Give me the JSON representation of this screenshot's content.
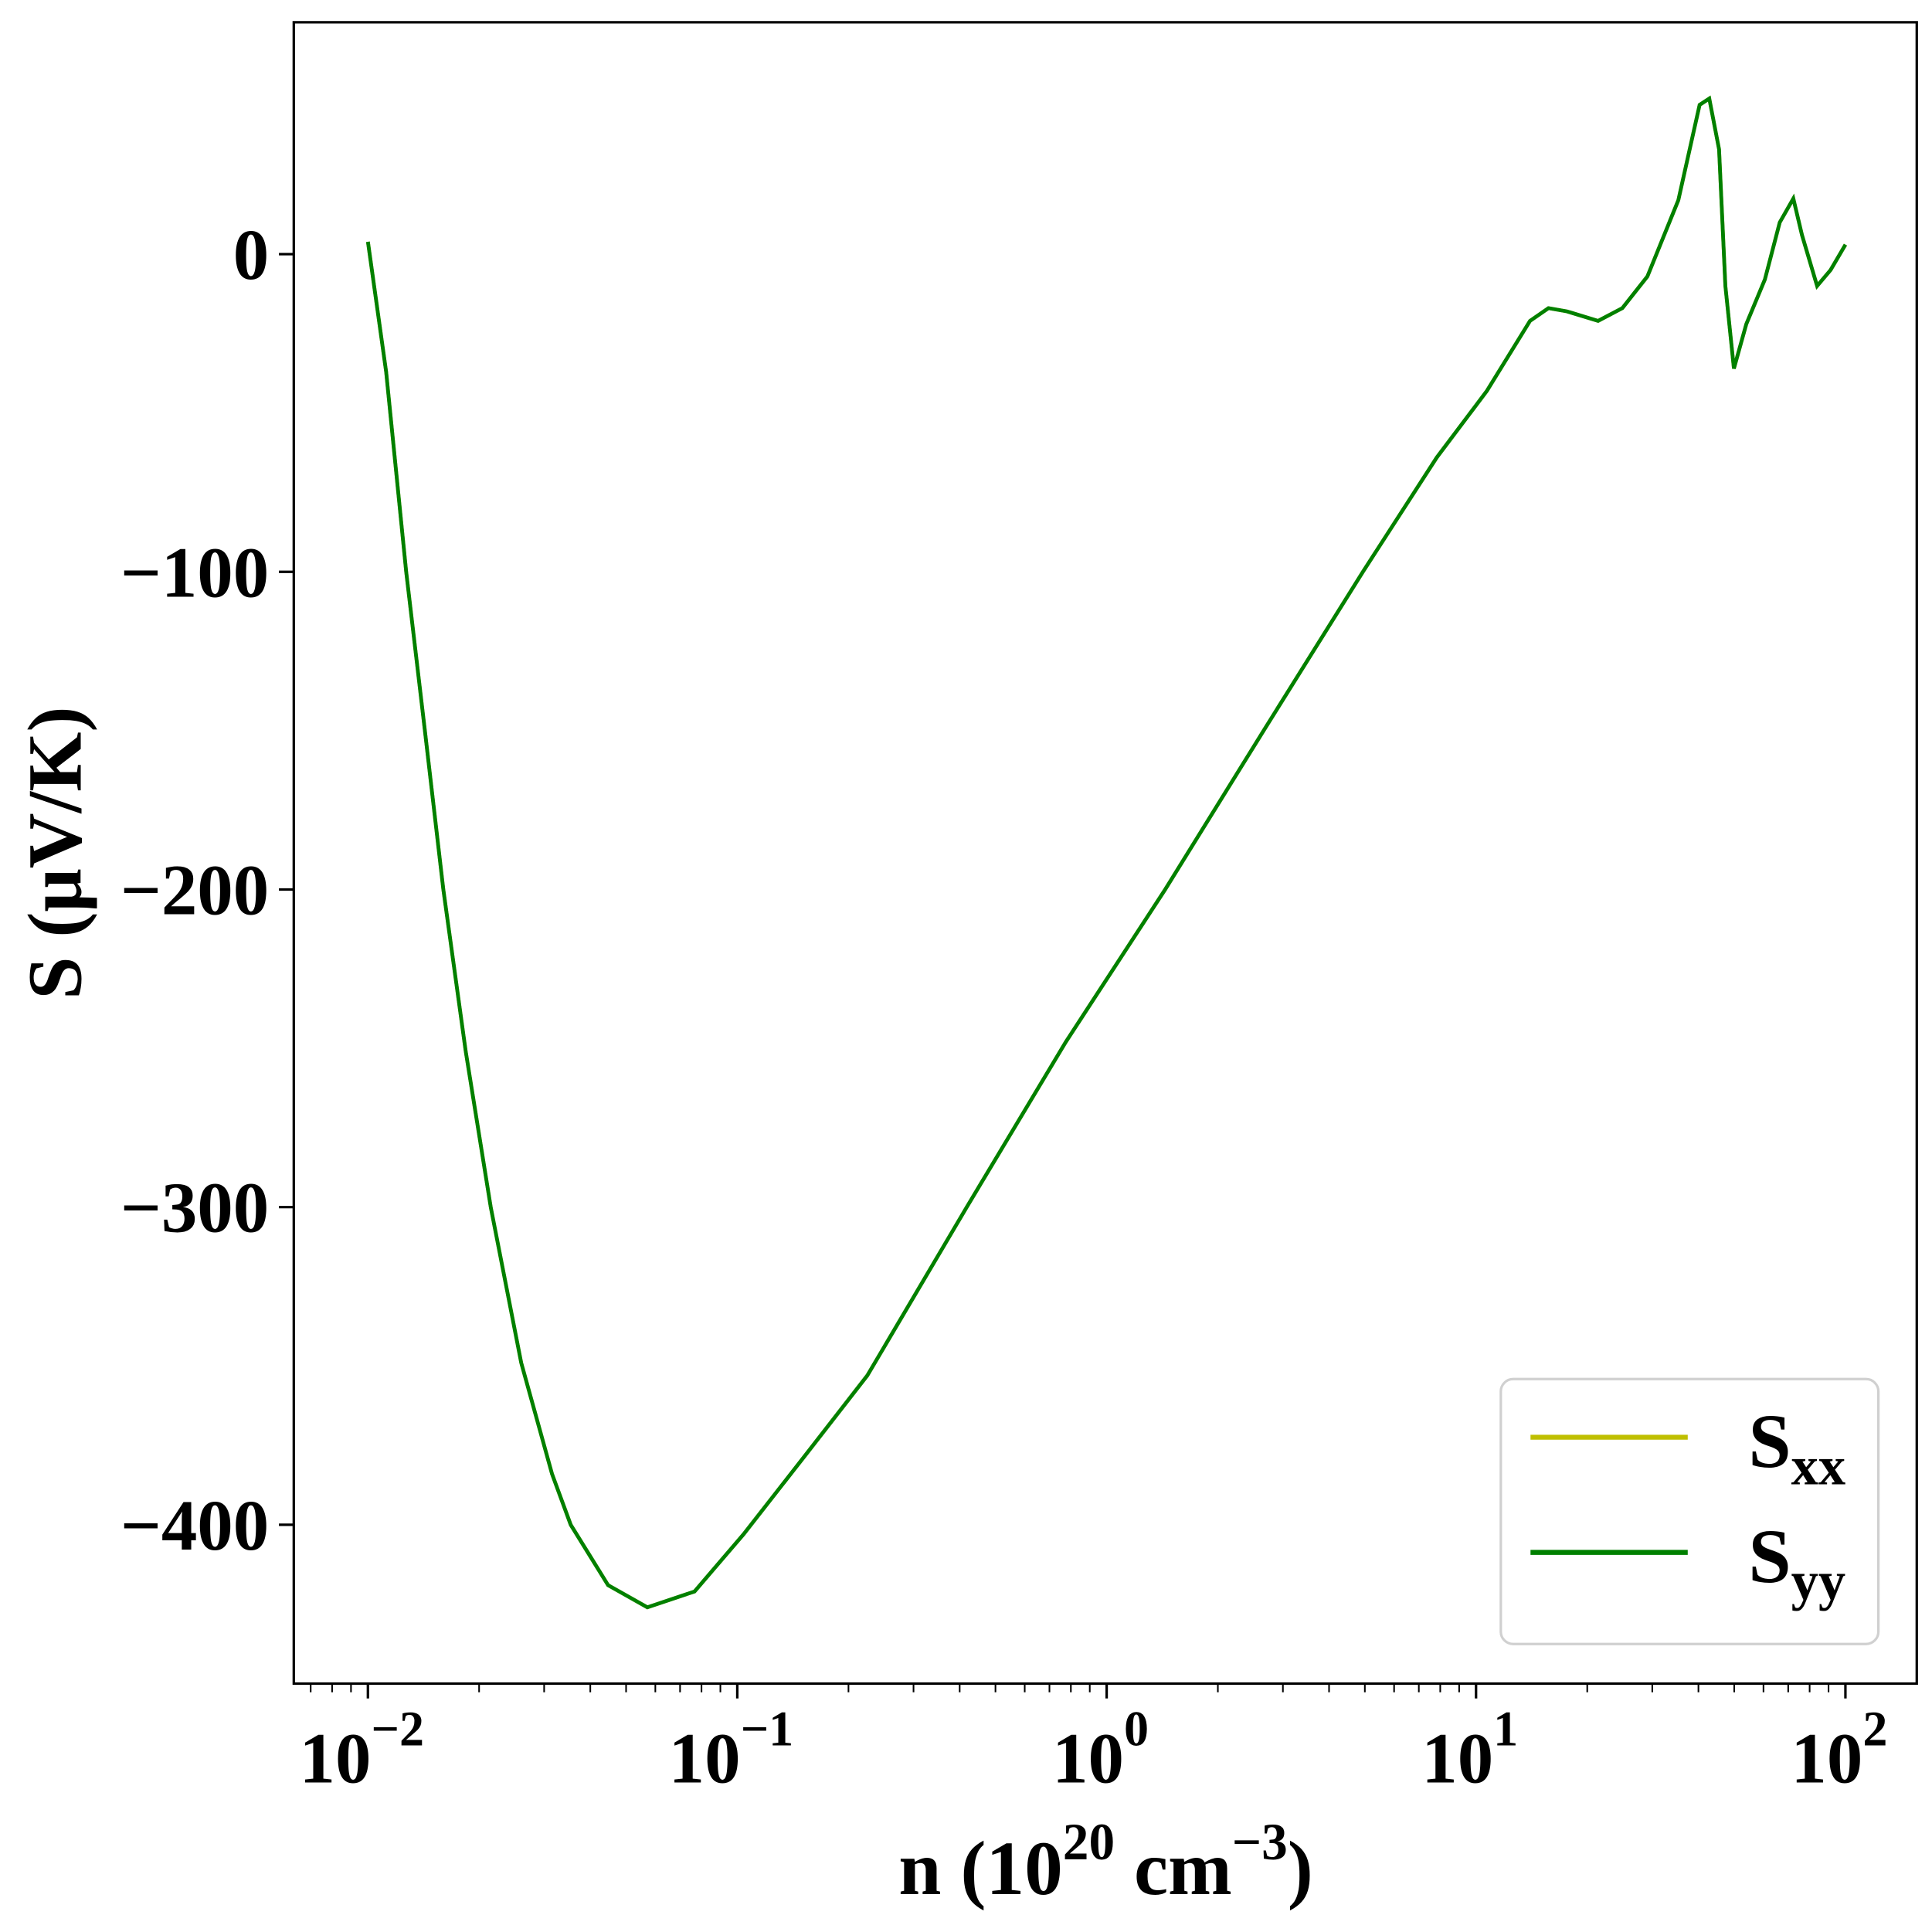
{
  "chart_data": {
    "type": "line",
    "title": "",
    "xlabel": "n (10^20 cm^-3)",
    "xlabel_parts": {
      "main": "n (10",
      "exp1": "20",
      "mid": " cm",
      "exp2": "−3",
      "end": ")"
    },
    "ylabel": "S (μV/K)",
    "xscale": "log",
    "xlim": [
      0.0063,
      156
    ],
    "ylim": [
      -450,
      73
    ],
    "grid": false,
    "legend_position": "lower-right",
    "xticks": [
      {
        "value": 0.01,
        "base": "10",
        "exp": "−2"
      },
      {
        "value": 0.1,
        "base": "10",
        "exp": "−1"
      },
      {
        "value": 1,
        "base": "10",
        "exp": "0"
      },
      {
        "value": 10,
        "base": "10",
        "exp": "1"
      },
      {
        "value": 100,
        "base": "10",
        "exp": "2"
      }
    ],
    "yticks": [
      {
        "value": 0,
        "label": "0"
      },
      {
        "value": -100,
        "label": "−100"
      },
      {
        "value": -200,
        "label": "−200"
      },
      {
        "value": -300,
        "label": "−300"
      },
      {
        "value": -400,
        "label": "−400"
      }
    ],
    "x": [
      0.01,
      0.0112,
      0.0127,
      0.01426,
      0.016,
      0.0184,
      0.0215,
      0.026,
      0.0315,
      0.0354,
      0.0447,
      0.0571,
      0.0766,
      0.104,
      0.153,
      0.225,
      0.418,
      0.775,
      1.44,
      2.66,
      4.94,
      7.83,
      10.7,
      14.0,
      15.7,
      17.6,
      21.4,
      24.9,
      29.1,
      35.3,
      40.3,
      42.8,
      45.5,
      47.3,
      49.9,
      53.9,
      60.5,
      66.4,
      72.3,
      76.3,
      83.8,
      91.2,
      100
    ],
    "series": [
      {
        "name": "S",
        "sub": "xx",
        "color": "#bfbf00",
        "values": [
          3.9,
          -37,
          -100,
          -150,
          -200,
          -251,
          -300,
          -349,
          -384,
          -400,
          -419,
          -426,
          -421,
          -403,
          -378,
          -353,
          -300,
          -248,
          -200,
          -150,
          -100,
          -64,
          -43,
          -21,
          -17,
          -18,
          -21,
          -17,
          -7,
          17,
          47,
          49,
          33,
          -10,
          -36,
          -22,
          -8,
          10,
          17.5,
          6,
          -10,
          -5,
          3
        ]
      },
      {
        "name": "S",
        "sub": "yy",
        "color": "#008000",
        "values": [
          3.9,
          -37,
          -100,
          -150,
          -200,
          -251,
          -300,
          -349,
          -384,
          -400,
          -419,
          -426,
          -421,
          -403,
          -378,
          -353,
          -300,
          -248,
          -200,
          -150,
          -100,
          -64,
          -43,
          -21,
          -17,
          -18,
          -21,
          -17,
          -7,
          17,
          47,
          49,
          33,
          -10,
          -36,
          -22,
          -8,
          10,
          17.5,
          6,
          -10,
          -5,
          3
        ]
      }
    ]
  }
}
